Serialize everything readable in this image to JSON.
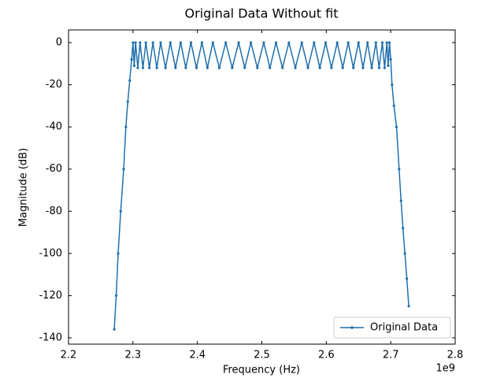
{
  "chart_data": {
    "type": "line",
    "title": "Original Data Without fit",
    "xlabel": "Frequency (Hz)",
    "ylabel": "Magnitude (dB)",
    "x_offset_label": "1e9",
    "xlim": [
      2.2,
      2.8
    ],
    "xticks": [
      2.2,
      2.3,
      2.4,
      2.5,
      2.6,
      2.7,
      2.8
    ],
    "ylim": [
      -143,
      6
    ],
    "yticks": [
      0,
      -20,
      -40,
      -60,
      -80,
      -100,
      -120,
      -140
    ],
    "legend": "lower right",
    "x": [
      2.271,
      2.274,
      2.277,
      2.281,
      2.2856,
      2.289,
      2.292,
      2.295,
      2.298,
      2.3,
      2.302,
      2.304,
      2.3075,
      2.311,
      2.3155,
      2.32,
      2.3255,
      2.331,
      2.337,
      2.343,
      2.3505,
      2.358,
      2.366,
      2.374,
      2.382,
      2.39,
      2.3985,
      2.407,
      2.4155,
      2.424,
      2.434,
      2.444,
      2.454,
      2.464,
      2.4735,
      2.483,
      2.493,
      2.503,
      2.5125,
      2.522,
      2.532,
      2.542,
      2.552,
      2.562,
      2.5715,
      2.581,
      2.59,
      2.599,
      2.608,
      2.617,
      2.6255,
      2.634,
      2.642,
      2.65,
      2.657,
      2.664,
      2.6705,
      2.677,
      2.682,
      2.687,
      2.6905,
      2.694,
      2.696,
      2.698,
      2.7,
      2.702,
      2.705,
      2.709,
      2.713,
      2.716,
      2.719,
      2.722,
      2.725,
      2.728
    ],
    "series": [
      {
        "name": "Original Data",
        "color": "#1f6fad",
        "values": [
          -136,
          -120,
          -100,
          -80,
          -60,
          -40,
          -28,
          -18,
          -8,
          0,
          -11,
          0,
          -12,
          0,
          -12,
          0,
          -12,
          0,
          -12,
          0,
          -12,
          0,
          -12,
          0,
          -12,
          0,
          -12,
          0,
          -12,
          0,
          -12,
          0,
          -12,
          0,
          -12,
          0,
          -12,
          0,
          -12,
          0,
          -12,
          0,
          -12,
          0,
          -12,
          0,
          -12,
          0,
          -12,
          0,
          -12,
          0,
          -12,
          0,
          -12,
          0,
          -12,
          0,
          -12,
          0,
          -12,
          0,
          -11,
          0,
          -8,
          -20,
          -30,
          -40,
          -60,
          -75,
          -88,
          -100,
          -112,
          -125
        ]
      }
    ]
  }
}
